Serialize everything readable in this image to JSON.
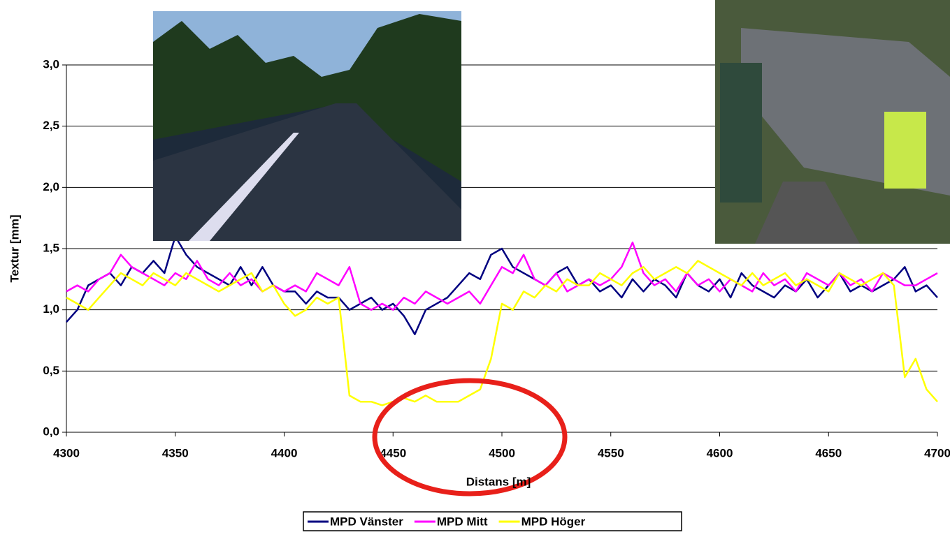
{
  "chart_data": {
    "type": "line",
    "x_label": "Distans [m]",
    "y_label": "Textur [mm]",
    "x": [
      4300,
      4305,
      4310,
      4315,
      4320,
      4325,
      4330,
      4335,
      4340,
      4345,
      4350,
      4355,
      4360,
      4365,
      4370,
      4375,
      4380,
      4385,
      4390,
      4395,
      4400,
      4405,
      4410,
      4415,
      4420,
      4425,
      4430,
      4435,
      4440,
      4445,
      4450,
      4455,
      4460,
      4465,
      4470,
      4475,
      4480,
      4485,
      4490,
      4495,
      4500,
      4505,
      4510,
      4515,
      4520,
      4525,
      4530,
      4535,
      4540,
      4545,
      4550,
      4555,
      4560,
      4565,
      4570,
      4575,
      4580,
      4585,
      4590,
      4595,
      4600,
      4605,
      4610,
      4615,
      4620,
      4625,
      4630,
      4635,
      4640,
      4645,
      4650,
      4655,
      4660,
      4665,
      4670,
      4675,
      4680,
      4685,
      4690,
      4695,
      4700
    ],
    "series": [
      {
        "name": "MPD Vänster",
        "color": "#000080",
        "values": [
          0.9,
          1.0,
          1.2,
          1.25,
          1.3,
          1.2,
          1.35,
          1.3,
          1.4,
          1.3,
          1.6,
          1.45,
          1.35,
          1.3,
          1.25,
          1.2,
          1.35,
          1.2,
          1.35,
          1.2,
          1.15,
          1.15,
          1.05,
          1.15,
          1.1,
          1.1,
          1.0,
          1.05,
          1.1,
          1.0,
          1.05,
          0.95,
          0.8,
          1.0,
          1.05,
          1.1,
          1.2,
          1.3,
          1.25,
          1.45,
          1.5,
          1.35,
          1.3,
          1.25,
          1.2,
          1.3,
          1.35,
          1.2,
          1.25,
          1.15,
          1.2,
          1.1,
          1.25,
          1.15,
          1.25,
          1.2,
          1.1,
          1.3,
          1.2,
          1.15,
          1.25,
          1.1,
          1.3,
          1.2,
          1.15,
          1.1,
          1.2,
          1.15,
          1.25,
          1.1,
          1.2,
          1.3,
          1.15,
          1.2,
          1.15,
          1.2,
          1.25,
          1.35,
          1.15,
          1.2,
          1.1
        ]
      },
      {
        "name": "MPD Mitt",
        "color": "#ff00ff",
        "values": [
          1.15,
          1.2,
          1.15,
          1.25,
          1.3,
          1.45,
          1.35,
          1.3,
          1.25,
          1.2,
          1.3,
          1.25,
          1.4,
          1.25,
          1.2,
          1.3,
          1.2,
          1.25,
          1.15,
          1.2,
          1.15,
          1.2,
          1.15,
          1.3,
          1.25,
          1.2,
          1.35,
          1.05,
          1.0,
          1.05,
          1.0,
          1.1,
          1.05,
          1.15,
          1.1,
          1.05,
          1.1,
          1.15,
          1.05,
          1.2,
          1.35,
          1.3,
          1.45,
          1.25,
          1.2,
          1.3,
          1.15,
          1.2,
          1.25,
          1.2,
          1.25,
          1.35,
          1.55,
          1.3,
          1.2,
          1.25,
          1.15,
          1.3,
          1.2,
          1.25,
          1.15,
          1.25,
          1.2,
          1.15,
          1.3,
          1.2,
          1.25,
          1.15,
          1.3,
          1.25,
          1.2,
          1.3,
          1.2,
          1.25,
          1.15,
          1.3,
          1.25,
          1.2,
          1.2,
          1.25,
          1.3
        ]
      },
      {
        "name": "MPD Höger",
        "color": "#ffff00",
        "values": [
          1.1,
          1.05,
          1.0,
          1.1,
          1.2,
          1.3,
          1.25,
          1.2,
          1.3,
          1.25,
          1.2,
          1.3,
          1.25,
          1.2,
          1.15,
          1.2,
          1.25,
          1.3,
          1.15,
          1.2,
          1.05,
          0.95,
          1.0,
          1.1,
          1.05,
          1.1,
          0.3,
          0.25,
          0.25,
          0.22,
          0.25,
          0.28,
          0.25,
          0.3,
          0.25,
          0.25,
          0.25,
          0.3,
          0.35,
          0.6,
          1.05,
          1.0,
          1.15,
          1.1,
          1.2,
          1.15,
          1.25,
          1.2,
          1.2,
          1.3,
          1.25,
          1.2,
          1.3,
          1.35,
          1.25,
          1.3,
          1.35,
          1.3,
          1.4,
          1.35,
          1.3,
          1.25,
          1.2,
          1.3,
          1.2,
          1.25,
          1.3,
          1.2,
          1.25,
          1.2,
          1.15,
          1.3,
          1.25,
          1.2,
          1.25,
          1.3,
          1.2,
          0.45,
          0.6,
          0.35,
          0.25
        ]
      }
    ],
    "xlim": [
      4300,
      4700
    ],
    "xticks": [
      4300,
      4350,
      4400,
      4450,
      4500,
      4550,
      4600,
      4650,
      4700
    ],
    "ylim": [
      0,
      3
    ],
    "yticks": [
      {
        "value": 0,
        "label": "0,0"
      },
      {
        "value": 0.5,
        "label": "0,5"
      },
      {
        "value": 1,
        "label": "1,0"
      },
      {
        "value": 1.5,
        "label": "1,5"
      },
      {
        "value": 2,
        "label": "2,0"
      },
      {
        "value": 2.5,
        "label": "2,5"
      },
      {
        "value": 3,
        "label": "3,0"
      }
    ],
    "grid": true,
    "legend": "bottom"
  }
}
